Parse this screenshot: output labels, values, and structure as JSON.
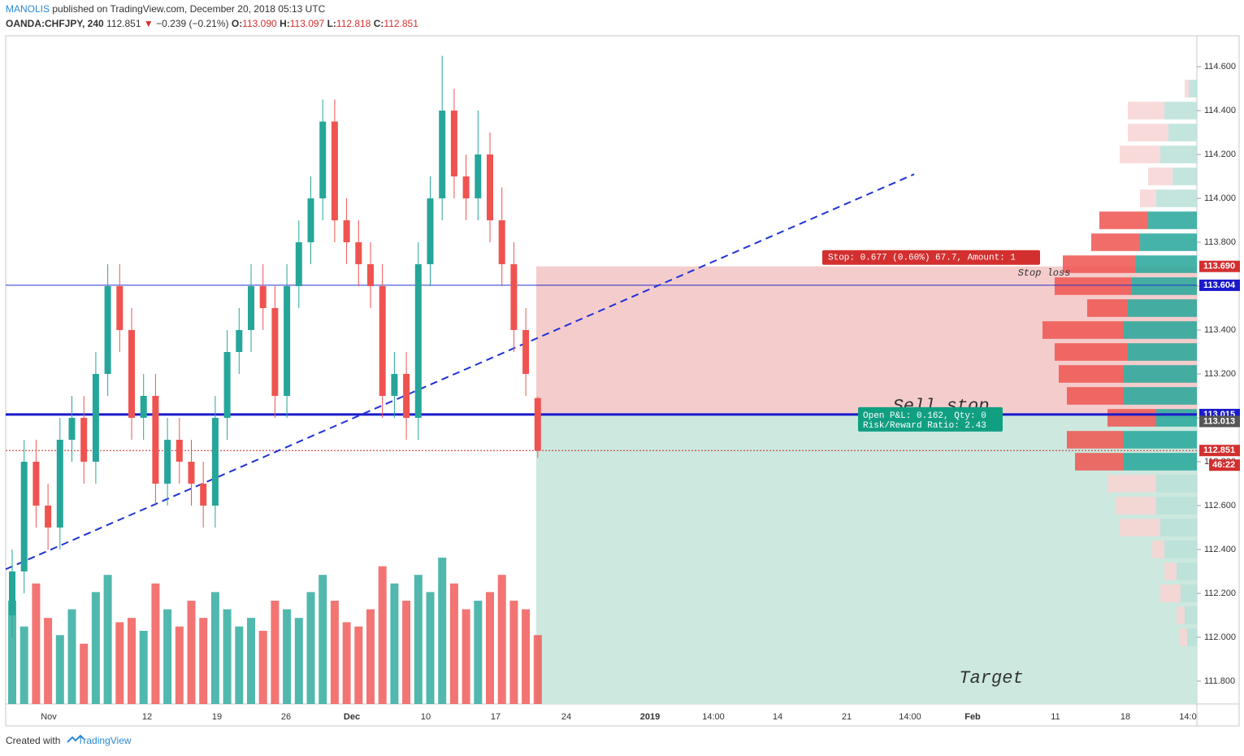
{
  "header": {
    "author": "MANOLIS",
    "published": "published on TradingView.com, December 20, 2018 05:13 UTC",
    "symbol": "OANDA:CHFJPY, 240",
    "last": "112.851",
    "arrow": "▼",
    "change": "−0.239 (−0.21%)",
    "ohlc": [
      {
        "label": "O:",
        "value": "113.090"
      },
      {
        "label": "H:",
        "value": "113.097"
      },
      {
        "label": "L:",
        "value": "112.818"
      },
      {
        "label": "C:",
        "value": "112.851"
      }
    ]
  },
  "chart_data": {
    "type": "candlestick",
    "ylim": [
      111.696,
      114.741
    ],
    "yticks": [
      {
        "value": 111.8,
        "label": "111.800"
      },
      {
        "value": 112,
        "label": "112.000"
      },
      {
        "value": 112.2,
        "label": "112.200"
      },
      {
        "value": 112.4,
        "label": "112.400"
      },
      {
        "value": 112.6,
        "label": "112.600"
      },
      {
        "value": 112.8,
        "label": "112.800"
      },
      {
        "value": 113,
        "label": "113.000"
      },
      {
        "value": 113.2,
        "label": "113.200"
      },
      {
        "value": 113.4,
        "label": "113.400"
      },
      {
        "value": 113.6,
        "label": "113.600"
      },
      {
        "value": 113.8,
        "label": "113.800"
      },
      {
        "value": 114,
        "label": "114.000"
      },
      {
        "value": 114.2,
        "label": "114.200"
      },
      {
        "value": 114.4,
        "label": "114.400"
      },
      {
        "value": 114.6,
        "label": "114.600"
      }
    ],
    "xticks": [
      "Nov",
      "12",
      "19",
      "26",
      "Dec",
      "10",
      "17",
      "24",
      "2019",
      "14:00",
      "14",
      "21",
      "14:00",
      "Feb",
      "11",
      "18",
      "14:0"
    ],
    "up_color": "#26a69a",
    "down_color": "#ef5350",
    "candles": {
      "open": [
        112.1,
        112.3,
        112.8,
        112.6,
        112.5,
        112.9,
        113.0,
        112.8,
        113.2,
        113.6,
        113.4,
        113.0,
        113.1,
        112.7,
        112.9,
        112.8,
        112.7,
        112.6,
        113.0,
        113.3,
        113.4,
        113.6,
        113.5,
        113.1,
        113.6,
        113.8,
        114.0,
        114.35,
        113.9,
        113.8,
        113.7,
        113.6,
        113.1,
        113.2,
        113.0,
        113.7,
        114.0,
        114.4,
        114.1,
        114.0,
        114.2,
        113.9,
        113.7,
        113.4,
        113.09
      ],
      "high": [
        112.4,
        112.9,
        112.9,
        112.7,
        113.0,
        113.1,
        113.1,
        113.3,
        113.7,
        113.7,
        113.5,
        113.2,
        113.2,
        113.0,
        113.0,
        112.9,
        112.8,
        113.1,
        113.4,
        113.5,
        113.7,
        113.7,
        113.6,
        113.7,
        113.9,
        114.1,
        114.45,
        114.45,
        114.0,
        113.9,
        113.8,
        113.7,
        113.3,
        113.3,
        113.8,
        114.1,
        114.65,
        114.5,
        114.2,
        114.4,
        114.3,
        114.05,
        113.8,
        113.5,
        113.097
      ],
      "low": [
        112.0,
        112.2,
        112.5,
        112.4,
        112.4,
        112.8,
        112.7,
        112.7,
        113.1,
        113.3,
        112.9,
        112.9,
        112.6,
        112.6,
        112.7,
        112.6,
        112.5,
        112.5,
        112.9,
        113.2,
        113.3,
        113.4,
        113.0,
        113.0,
        113.5,
        113.7,
        113.9,
        113.8,
        113.7,
        113.6,
        113.5,
        113.0,
        113.0,
        112.9,
        112.9,
        113.6,
        113.9,
        114.0,
        113.9,
        113.9,
        113.8,
        113.6,
        113.3,
        113.1,
        112.818
      ],
      "close": [
        112.3,
        112.8,
        112.6,
        112.5,
        112.9,
        113.0,
        112.8,
        113.2,
        113.6,
        113.4,
        113.0,
        113.1,
        112.7,
        112.9,
        112.8,
        112.7,
        112.6,
        113.0,
        113.3,
        113.4,
        113.6,
        113.5,
        113.1,
        113.6,
        113.8,
        114.0,
        114.35,
        113.9,
        113.8,
        113.7,
        113.6,
        113.1,
        113.2,
        113.0,
        113.7,
        114.0,
        114.4,
        114.1,
        114.0,
        114.2,
        113.9,
        113.7,
        113.4,
        113.2,
        112.851
      ]
    },
    "volume": [
      120,
      90,
      140,
      100,
      80,
      110,
      70,
      130,
      150,
      95,
      100,
      85,
      140,
      110,
      90,
      120,
      100,
      130,
      110,
      90,
      100,
      85,
      120,
      110,
      100,
      130,
      150,
      120,
      95,
      90,
      110,
      160,
      140,
      120,
      150,
      130,
      170,
      140,
      110,
      120,
      130,
      150,
      120,
      110,
      80
    ],
    "trendline": {
      "start": 112.31,
      "end": 114.11,
      "color": "#1f33d6"
    },
    "levels": [
      {
        "value": 113.604,
        "color": "#2233cc",
        "width": 1,
        "dash": false
      },
      {
        "value": 113.015,
        "color": "#1a1acc",
        "width": 3,
        "dash": false
      },
      {
        "value": 112.851,
        "color": "#c62828",
        "width": 1,
        "dash": true
      }
    ],
    "position": {
      "stop": 113.69,
      "entry": 113.015,
      "stop_color": "#f4cccc",
      "target_color": "#cce8df"
    },
    "annotations": {
      "stop_info": "Stop: 0.677 (0.60%) 67.7, Amount: 1",
      "stop_loss": "Stop loss",
      "sell_stop": "Sell stop",
      "pnl": "Open P&L: 0.162, Qty: 0",
      "rr": "Risk/Reward Ratio: 2.43",
      "target": "Target"
    },
    "price_tags": [
      {
        "value": 113.69,
        "label": "113.690",
        "color": "#d32f2f"
      },
      {
        "value": 113.604,
        "label": "113.604",
        "color": "#1a1acc"
      },
      {
        "value": 113.015,
        "label": "113.015",
        "color": "#1a1acc"
      },
      {
        "value": 113.013,
        "label": "113.013",
        "color": "#555555"
      },
      {
        "value": 112.851,
        "label": "112.851",
        "color": "#d32f2f"
      }
    ],
    "countdown": "46:22",
    "profile": {
      "value_area": [
        112.75,
        113.95
      ],
      "up_color": "#26a69a",
      "down_color": "#ef5350",
      "up_light": "#b9e0d8",
      "down_light": "#f8d3d3",
      "rows": [
        {
          "price": 114.5,
          "up": 10,
          "down": 5
        },
        {
          "price": 114.4,
          "up": 40,
          "down": 45
        },
        {
          "price": 114.3,
          "up": 35,
          "down": 50
        },
        {
          "price": 114.2,
          "up": 45,
          "down": 50
        },
        {
          "price": 114.1,
          "up": 30,
          "down": 30
        },
        {
          "price": 114.0,
          "up": 50,
          "down": 20
        },
        {
          "price": 113.9,
          "up": 60,
          "down": 60
        },
        {
          "price": 113.8,
          "up": 70,
          "down": 60
        },
        {
          "price": 113.7,
          "up": 75,
          "down": 90
        },
        {
          "price": 113.6,
          "up": 80,
          "down": 95
        },
        {
          "price": 113.5,
          "up": 85,
          "down": 50
        },
        {
          "price": 113.4,
          "up": 90,
          "down": 100
        },
        {
          "price": 113.3,
          "up": 85,
          "down": 90
        },
        {
          "price": 113.2,
          "up": 90,
          "down": 80
        },
        {
          "price": 113.1,
          "up": 90,
          "down": 70
        },
        {
          "price": 113.0,
          "up": 50,
          "down": 60
        },
        {
          "price": 112.9,
          "up": 90,
          "down": 70
        },
        {
          "price": 112.8,
          "up": 90,
          "down": 60
        },
        {
          "price": 112.7,
          "up": 50,
          "down": 60
        },
        {
          "price": 112.6,
          "up": 50,
          "down": 50
        },
        {
          "price": 112.5,
          "up": 45,
          "down": 50
        },
        {
          "price": 112.4,
          "up": 40,
          "down": 15
        },
        {
          "price": 112.3,
          "up": 25,
          "down": 15
        },
        {
          "price": 112.2,
          "up": 20,
          "down": 25
        },
        {
          "price": 112.1,
          "up": 15,
          "down": 10
        },
        {
          "price": 112.0,
          "up": 12,
          "down": 10
        }
      ]
    }
  },
  "footer": {
    "created": "Created with",
    "brand": "TradingView"
  }
}
